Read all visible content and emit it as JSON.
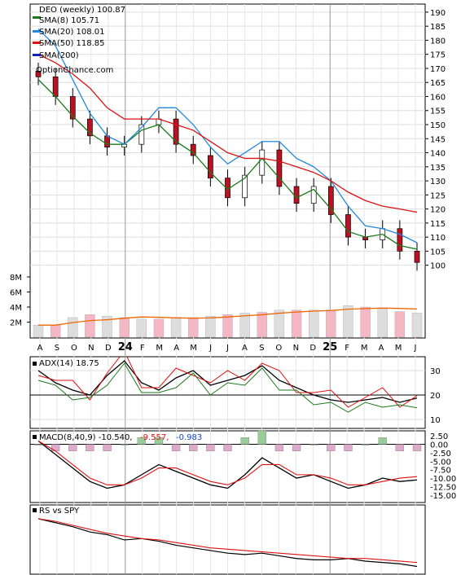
{
  "title": "DEO (weekly) 100.87",
  "watermark": "OptionChance.com",
  "legend": [
    {
      "label": "SMA(8) 105.71",
      "color": "#1a7a1a"
    },
    {
      "label": "SMA(20) 108.01",
      "color": "#2288dd"
    },
    {
      "label": "SMA(50) 118.85",
      "color": "#dd1111"
    },
    {
      "label": "SMA(200)",
      "color": "#1122bb"
    }
  ],
  "x_axis_labels": [
    "A",
    "S",
    "O",
    "N",
    "D",
    "24",
    "F",
    "M",
    "A",
    "M",
    "J",
    "J",
    "A",
    "S",
    "O",
    "N",
    "D",
    "25",
    "F",
    "M",
    "A",
    "M",
    "J"
  ],
  "price_ticks": [
    "100",
    "105",
    "110",
    "115",
    "120",
    "125",
    "130",
    "135",
    "140",
    "145",
    "150",
    "155",
    "160",
    "165",
    "170",
    "175",
    "180",
    "185",
    "190"
  ],
  "volume_ticks": [
    "2M",
    "4M",
    "6M",
    "8M"
  ],
  "adx_panel": {
    "label": "ADX(14) 18.75",
    "ticks": [
      "10",
      "20",
      "30"
    ]
  },
  "macd_panel": {
    "label": "MACD(8,40,9) -10.540,",
    "value_red": "-9.557,",
    "value_blue": "-0.983",
    "ticks": [
      "2.50",
      "0.00",
      "-2.50",
      "-5.00",
      "-7.50",
      "-10.00",
      "-12.50",
      "-15.00"
    ]
  },
  "rs_panel": {
    "label": "RS vs SPY"
  },
  "chart_data": {
    "type": "line",
    "title": "DEO (weekly) 100.87",
    "x": [
      "2023-08",
      "2023-09",
      "2023-10",
      "2023-11",
      "2023-12",
      "2024-01",
      "2024-02",
      "2024-03",
      "2024-04",
      "2024-05",
      "2024-06",
      "2024-07",
      "2024-08",
      "2024-09",
      "2024-10",
      "2024-11",
      "2024-12",
      "2025-01",
      "2025-02",
      "2025-03",
      "2025-04",
      "2025-05",
      "2025-06"
    ],
    "series": [
      {
        "name": "DEO",
        "values": [
          167,
          160,
          152,
          146,
          142,
          143,
          150,
          152,
          143,
          139,
          131,
          124,
          132,
          141,
          128,
          122,
          128,
          118,
          110,
          109,
          113,
          105,
          101
        ]
      },
      {
        "name": "SMA(8)",
        "values": [
          166,
          160,
          153,
          147,
          143,
          143,
          148,
          150,
          144,
          140,
          133,
          127,
          131,
          138,
          131,
          124,
          127,
          120,
          112,
          110,
          111,
          107,
          105.71
        ]
      },
      {
        "name": "SMA(20)",
        "values": [
          184,
          178,
          166,
          154,
          146,
          143,
          149,
          156,
          156,
          150,
          142,
          136,
          140,
          144,
          144,
          138,
          135,
          130,
          121,
          114,
          113,
          111,
          108.01
        ]
      },
      {
        "name": "SMA(50)",
        "values": [
          175,
          172,
          168,
          163,
          156,
          152,
          152,
          152,
          150,
          148,
          144,
          140,
          138,
          138,
          137,
          135,
          133,
          130,
          126,
          123,
          121,
          120,
          118.85
        ]
      }
    ],
    "volume_millions": [
      1.6,
      1.6,
      2.6,
      3.0,
      2.8,
      2.6,
      2.4,
      2.4,
      2.6,
      2.6,
      2.8,
      3.0,
      3.2,
      3.3,
      3.6,
      3.6,
      3.6,
      3.6,
      4.2,
      4.0,
      3.9,
      3.4,
      3.2
    ],
    "adx": [
      30,
      25,
      22,
      20,
      28,
      34,
      25,
      22,
      27,
      30,
      24,
      26,
      28,
      32,
      26,
      23,
      20,
      18,
      17,
      18,
      19,
      17,
      18.75
    ],
    "macd": [
      1,
      -3,
      -7,
      -11,
      -13,
      -12,
      -9,
      -6,
      -8,
      -10,
      -12,
      -13,
      -9,
      -4,
      -7,
      -10,
      -9,
      -11,
      -13,
      -12,
      -10,
      -11,
      -10.54
    ],
    "macd_signal": [
      1,
      -2,
      -6,
      -10,
      -12,
      -12,
      -10,
      -7,
      -7,
      -9,
      -11,
      -12,
      -10,
      -6,
      -6,
      -9,
      -9,
      -10,
      -12,
      -12,
      -11,
      -10,
      -9.557
    ],
    "rs": [
      1.0,
      0.97,
      0.94,
      0.9,
      0.88,
      0.84,
      0.85,
      0.83,
      0.8,
      0.78,
      0.76,
      0.74,
      0.73,
      0.74,
      0.72,
      0.7,
      0.69,
      0.69,
      0.7,
      0.68,
      0.67,
      0.66,
      0.64
    ],
    "rs_sma": [
      1.0,
      0.98,
      0.95,
      0.92,
      0.89,
      0.87,
      0.85,
      0.84,
      0.82,
      0.8,
      0.78,
      0.77,
      0.76,
      0.75,
      0.74,
      0.73,
      0.72,
      0.71,
      0.7,
      0.7,
      0.69,
      0.68,
      0.67
    ],
    "ylim": [
      97,
      192
    ],
    "grid": true
  }
}
